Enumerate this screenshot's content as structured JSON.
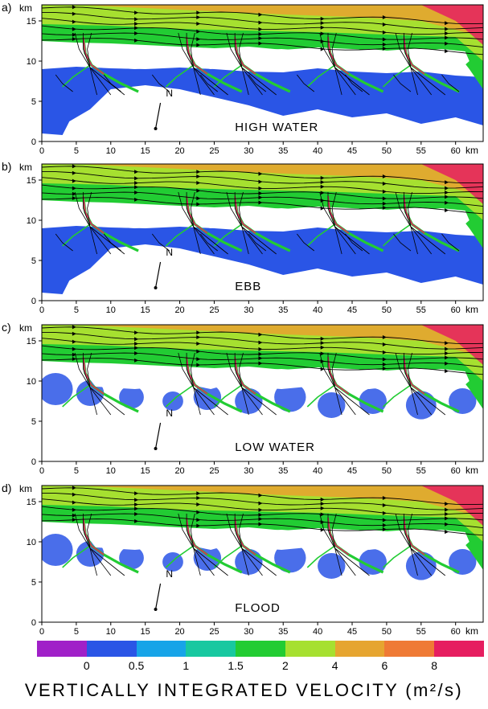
{
  "panels": [
    {
      "letter": "a)",
      "unit": "km",
      "state": "HIGH WATER",
      "north": "N"
    },
    {
      "letter": "b)",
      "unit": "km",
      "state": "EBB",
      "north": "N"
    },
    {
      "letter": "c)",
      "unit": "km",
      "state": "LOW WATER",
      "north": "N"
    },
    {
      "letter": "d)",
      "unit": "km",
      "state": "FLOOD",
      "north": "N"
    }
  ],
  "axes": {
    "x_ticks": [
      "0",
      "5",
      "10",
      "15",
      "20",
      "25",
      "30",
      "35",
      "40",
      "45",
      "50",
      "55",
      "60"
    ],
    "y_ticks": [
      "0",
      "5",
      "10",
      "15"
    ],
    "x_unit": "km",
    "x_range": [
      0,
      64
    ],
    "y_range": [
      0,
      17
    ]
  },
  "colorbar": {
    "title": "VERTICALLY INTEGRATED VELOCITY (m²/s)",
    "colors": [
      "#a020c8",
      "#2a55e6",
      "#17a4e8",
      "#18c8a0",
      "#22cc33",
      "#a6e030",
      "#e6a530",
      "#ef7a35",
      "#e61e60"
    ],
    "tick_labels": [
      "0",
      "0.5",
      "1",
      "1.5",
      "2",
      "4",
      "6",
      "8"
    ]
  },
  "palette": {
    "land": "#ffffff",
    "flat_low": "#2a55e6",
    "sea_mid": "#22cc33",
    "sea_high": "#a6e030",
    "offshore": "#e6a530",
    "peak": "#e61e60"
  }
}
